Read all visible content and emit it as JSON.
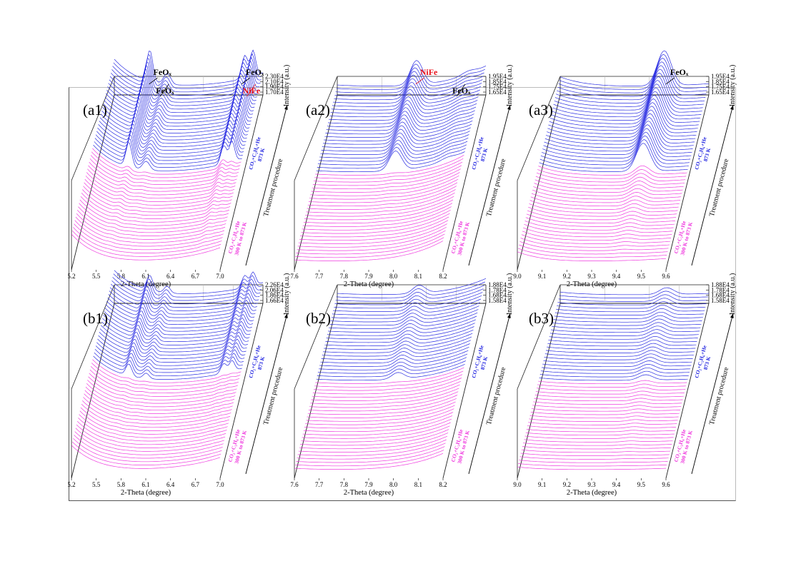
{
  "figure": {
    "colors": {
      "hot": "#1f22e0",
      "cold": "#ee33dd",
      "nife": "#e8141c",
      "text": "#000000"
    }
  },
  "chart_data": [
    {
      "id": "a1",
      "type": "line",
      "label": "(a1)",
      "xlabel": "2-Theta (degree)",
      "ylabel": "Intensity (a.u.)",
      "zlabel": "Treatment procedure",
      "xticks": [
        "5.2",
        "5.5",
        "5.8",
        "6.1",
        "6.4",
        "6.7",
        "7.0"
      ],
      "xlim": [
        5.2,
        7.0
      ],
      "yticks": [
        "1.70E4",
        "1.90E4",
        "2.10E4",
        "2.30E4"
      ],
      "groups": [
        {
          "line1": "CO₂+C₂H₆+He",
          "line2": "300 K to 873 K",
          "color": "#ee33dd"
        },
        {
          "line1": "CO₂+C₂H₆+He",
          "line2": "873 K",
          "color": "#1f22e0"
        }
      ],
      "annotations": [
        {
          "text": "FeOₓ",
          "x": 5.63,
          "color": "#000000"
        },
        {
          "text": "FeOₓ",
          "x": 5.87,
          "color": "#000000"
        },
        {
          "text": "FeOₓ",
          "x": 6.75,
          "color": "#000000"
        },
        {
          "text": "NiFe",
          "x": 6.92,
          "color": "#e8141c"
        }
      ],
      "peaks": [
        {
          "center": 5.63,
          "width": 0.05,
          "hot": 1.15,
          "cold": 0.15
        },
        {
          "center": 5.84,
          "width": 0.06,
          "hot": 0.4,
          "cold": 0.05
        },
        {
          "center": 6.78,
          "width": 0.05,
          "hot": 0.85,
          "cold": 0.3
        },
        {
          "center": 6.88,
          "width": 0.045,
          "hot": 0.95,
          "cold": 0.15
        }
      ],
      "baseline": {
        "left_rise": 1.0,
        "right_rise": 0.5
      }
    },
    {
      "id": "a2",
      "type": "line",
      "label": "(a2)",
      "xlabel": "2-Theta (degree)",
      "ylabel": "Intensity (a.u.)",
      "zlabel": "Treatment procedure",
      "xticks": [
        "7.6",
        "7.7",
        "7.8",
        "7.9",
        "8.0",
        "8.1",
        "8.2"
      ],
      "xlim": [
        7.6,
        8.2
      ],
      "yticks": [
        "1.65E4",
        "1.75E4",
        "1.85E4",
        "1.95E4"
      ],
      "groups": [
        {
          "line1": "CO₂+C₂H₆+He",
          "line2": "300 K to 873 K",
          "color": "#ee33dd"
        },
        {
          "line1": "CO₂+C₂H₆+He",
          "line2": "873 K",
          "color": "#1f22e0"
        }
      ],
      "annotations": [
        {
          "text": "NiFe",
          "x": 7.92,
          "color": "#e8141c"
        },
        {
          "text": "FeOₓ",
          "x": 8.12,
          "color": "#000000"
        }
      ],
      "peaks": [
        {
          "center": 7.92,
          "width": 0.035,
          "hot": 0.9,
          "cold": 0.04
        },
        {
          "center": 8.13,
          "width": 0.04,
          "hot": 0.12,
          "cold": 0.0
        }
      ],
      "baseline": {
        "left_rise": 0.05,
        "right_rise": 0.75
      }
    },
    {
      "id": "a3",
      "type": "line",
      "label": "(a3)",
      "xlabel": "2-Theta (degree)",
      "ylabel": "Intensity (a.u.)",
      "zlabel": "Treatment procedure",
      "xticks": [
        "9.0",
        "9.1",
        "9.2",
        "9.3",
        "9.4",
        "9.5",
        "9.6"
      ],
      "xlim": [
        9.0,
        9.6
      ],
      "yticks": [
        "1.65E4",
        "1.75E4",
        "1.85E4",
        "1.95E4"
      ],
      "groups": [
        {
          "line1": "CO₂+C₂H₆+He",
          "line2": "300 K to 873 K",
          "color": "#ee33dd"
        },
        {
          "line1": "CO₂+C₂H₆+He",
          "line2": "873 K",
          "color": "#1f22e0"
        }
      ],
      "annotations": [
        {
          "text": "FeOₓ",
          "x": 9.43,
          "color": "#000000"
        }
      ],
      "peaks": [
        {
          "center": 9.42,
          "width": 0.04,
          "hot": 1.3,
          "cold": 0.35
        }
      ],
      "baseline": {
        "left_rise": 0.35,
        "right_rise": 0.1
      }
    },
    {
      "id": "b1",
      "type": "line",
      "label": "(b1)",
      "xlabel": "2-Theta (degree)",
      "ylabel": "Intensity (a.u.)",
      "zlabel": "Treatment procedure",
      "xticks": [
        "5.2",
        "5.5",
        "5.8",
        "6.1",
        "6.4",
        "6.7",
        "7.0"
      ],
      "xlim": [
        5.2,
        7.0
      ],
      "yticks": [
        "1.66E4",
        "1.86E4",
        "2.06E4",
        "2.26E4"
      ],
      "groups": [
        {
          "line1": "CO₂+C₂H₆+He",
          "line2": "300 K to 873 K",
          "color": "#ee33dd"
        },
        {
          "line1": "CO₂+C₂H₆+He",
          "line2": "873 K",
          "color": "#1f22e0"
        }
      ],
      "annotations": [],
      "peaks": [
        {
          "center": 5.63,
          "width": 0.05,
          "hot": 0.55,
          "cold": 0.05
        },
        {
          "center": 5.84,
          "width": 0.05,
          "hot": 0.25,
          "cold": 0.03
        },
        {
          "center": 6.78,
          "width": 0.05,
          "hot": 0.45,
          "cold": 0.05
        },
        {
          "center": 6.88,
          "width": 0.045,
          "hot": 0.5,
          "cold": 0.05
        }
      ],
      "baseline": {
        "left_rise": 0.9,
        "right_rise": 0.45
      }
    },
    {
      "id": "b2",
      "type": "line",
      "label": "(b2)",
      "xlabel": "2-Theta (degree)",
      "ylabel": "Intensity (a.u.)",
      "zlabel": "Treatment procedure",
      "xticks": [
        "7.6",
        "7.7",
        "7.8",
        "7.9",
        "8.0",
        "8.1",
        "8.2"
      ],
      "xlim": [
        7.6,
        8.2
      ],
      "yticks": [
        "1.58E4",
        "1.68E4",
        "1.78E4",
        "1.88E4"
      ],
      "groups": [
        {
          "line1": "CO₂+C₂H₆+He",
          "line2": "300 K to 873 K",
          "color": "#ee33dd"
        },
        {
          "line1": "CO₂+C₂H₆+He",
          "line2": "873 K",
          "color": "#1f22e0"
        }
      ],
      "annotations": [],
      "peaks": [
        {
          "center": 7.93,
          "width": 0.035,
          "hot": 0.3,
          "cold": 0.02
        }
      ],
      "baseline": {
        "left_rise": 0.05,
        "right_rise": 0.6
      }
    },
    {
      "id": "b3",
      "type": "line",
      "label": "(b3)",
      "xlabel": "2-Theta (degree)",
      "ylabel": "Intensity (a.u.)",
      "zlabel": "Treatment procedure",
      "xticks": [
        "9.0",
        "9.1",
        "9.2",
        "9.3",
        "9.4",
        "9.5",
        "9.6"
      ],
      "xlim": [
        9.0,
        9.6
      ],
      "yticks": [
        "1.58E4",
        "1.68E4",
        "1.78E4",
        "1.88E4"
      ],
      "groups": [
        {
          "line1": "CO₂+C₂H₆+He",
          "line2": "300 K to 873 K",
          "color": "#ee33dd"
        },
        {
          "line1": "CO₂+C₂H₆+He",
          "line2": "873 K",
          "color": "#1f22e0"
        }
      ],
      "annotations": [],
      "peaks": [
        {
          "center": 9.43,
          "width": 0.04,
          "hot": 0.25,
          "cold": 0.12
        }
      ],
      "baseline": {
        "left_rise": 0.1,
        "right_rise": 0.05
      }
    }
  ]
}
